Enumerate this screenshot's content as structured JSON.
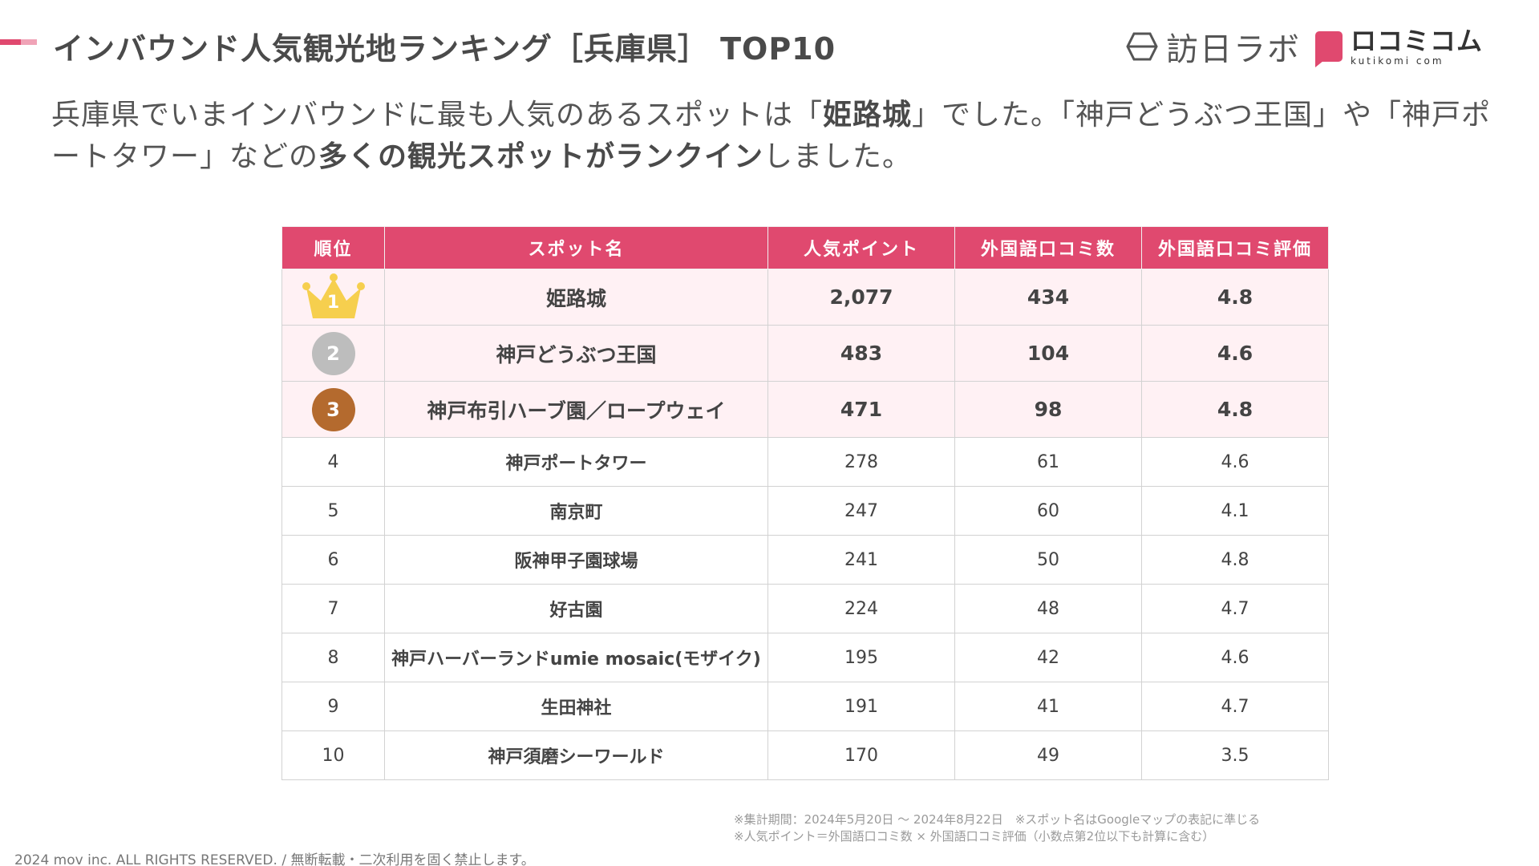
{
  "header": {
    "title": "インバウンド人気観光地ランキング［兵庫県］ TOP10",
    "logo_houni": "訪日ラボ",
    "logo_kuchikomi": "ロコミコム",
    "logo_kuchikomi_sub": "kutikomi com"
  },
  "lead": {
    "p1": "兵庫県でいまインバウンドに最も人気のあるスポットは「",
    "b1": "姫路城",
    "p2": "」でした。「神戸どうぶつ王国」や「神戸ポートタワー」などの",
    "b2": "多くの観光スポットがランクイン",
    "p3": "しました。"
  },
  "table": {
    "headers": [
      "順位",
      "スポット名",
      "人気ポイント",
      "外国語口コミ数",
      "外国語口コミ評価"
    ],
    "rows": [
      {
        "rank": "1",
        "spot": "姫路城",
        "points": "2,077",
        "count": "434",
        "rating": "4.8"
      },
      {
        "rank": "2",
        "spot": "神戸どうぶつ王国",
        "points": "483",
        "count": "104",
        "rating": "4.6"
      },
      {
        "rank": "3",
        "spot": "神戸布引ハーブ園／ロープウェイ",
        "points": "471",
        "count": "98",
        "rating": "4.8"
      },
      {
        "rank": "4",
        "spot": "神戸ポートタワー",
        "points": "278",
        "count": "61",
        "rating": "4.6"
      },
      {
        "rank": "5",
        "spot": "南京町",
        "points": "247",
        "count": "60",
        "rating": "4.1"
      },
      {
        "rank": "6",
        "spot": "阪神甲子園球場",
        "points": "241",
        "count": "50",
        "rating": "4.8"
      },
      {
        "rank": "7",
        "spot": "好古園",
        "points": "224",
        "count": "48",
        "rating": "4.7"
      },
      {
        "rank": "8",
        "spot": "神戸ハーバーランドumie mosaic(モザイク)",
        "points": "195",
        "count": "42",
        "rating": "4.6"
      },
      {
        "rank": "9",
        "spot": "生田神社",
        "points": "191",
        "count": "41",
        "rating": "4.7"
      },
      {
        "rank": "10",
        "spot": "神戸須磨シーワールド",
        "points": "170",
        "count": "49",
        "rating": "3.5"
      }
    ]
  },
  "notes": {
    "note1": "※集計期間：2024年5月20日 〜 2024年8月22日　※スポット名はGoogleマップの表記に準じる",
    "note2": "※人気ポイント＝外国語口コミ数 × 外国語口コミ評価（小数点第2位以下も計算に含む）"
  },
  "footer": "2024 mov inc. ALL RIGHTS RESERVED. / 無断転載・二次利用を固く禁止します。",
  "colors": {
    "accent": "#e0496f",
    "accent_light": "#f0a3b7",
    "top3_row_bg": "#fff1f4",
    "gold": "#f6cf4e",
    "silver": "#bdbdbd",
    "bronze": "#b46a2e"
  },
  "icons": {
    "rank1": "crown-icon",
    "rank2": "silver-medal-icon",
    "rank3": "bronze-medal-icon",
    "houni_logo": "hexagon-logo-icon",
    "kuchikomi_logo": "speech-bubble-logo-icon"
  }
}
